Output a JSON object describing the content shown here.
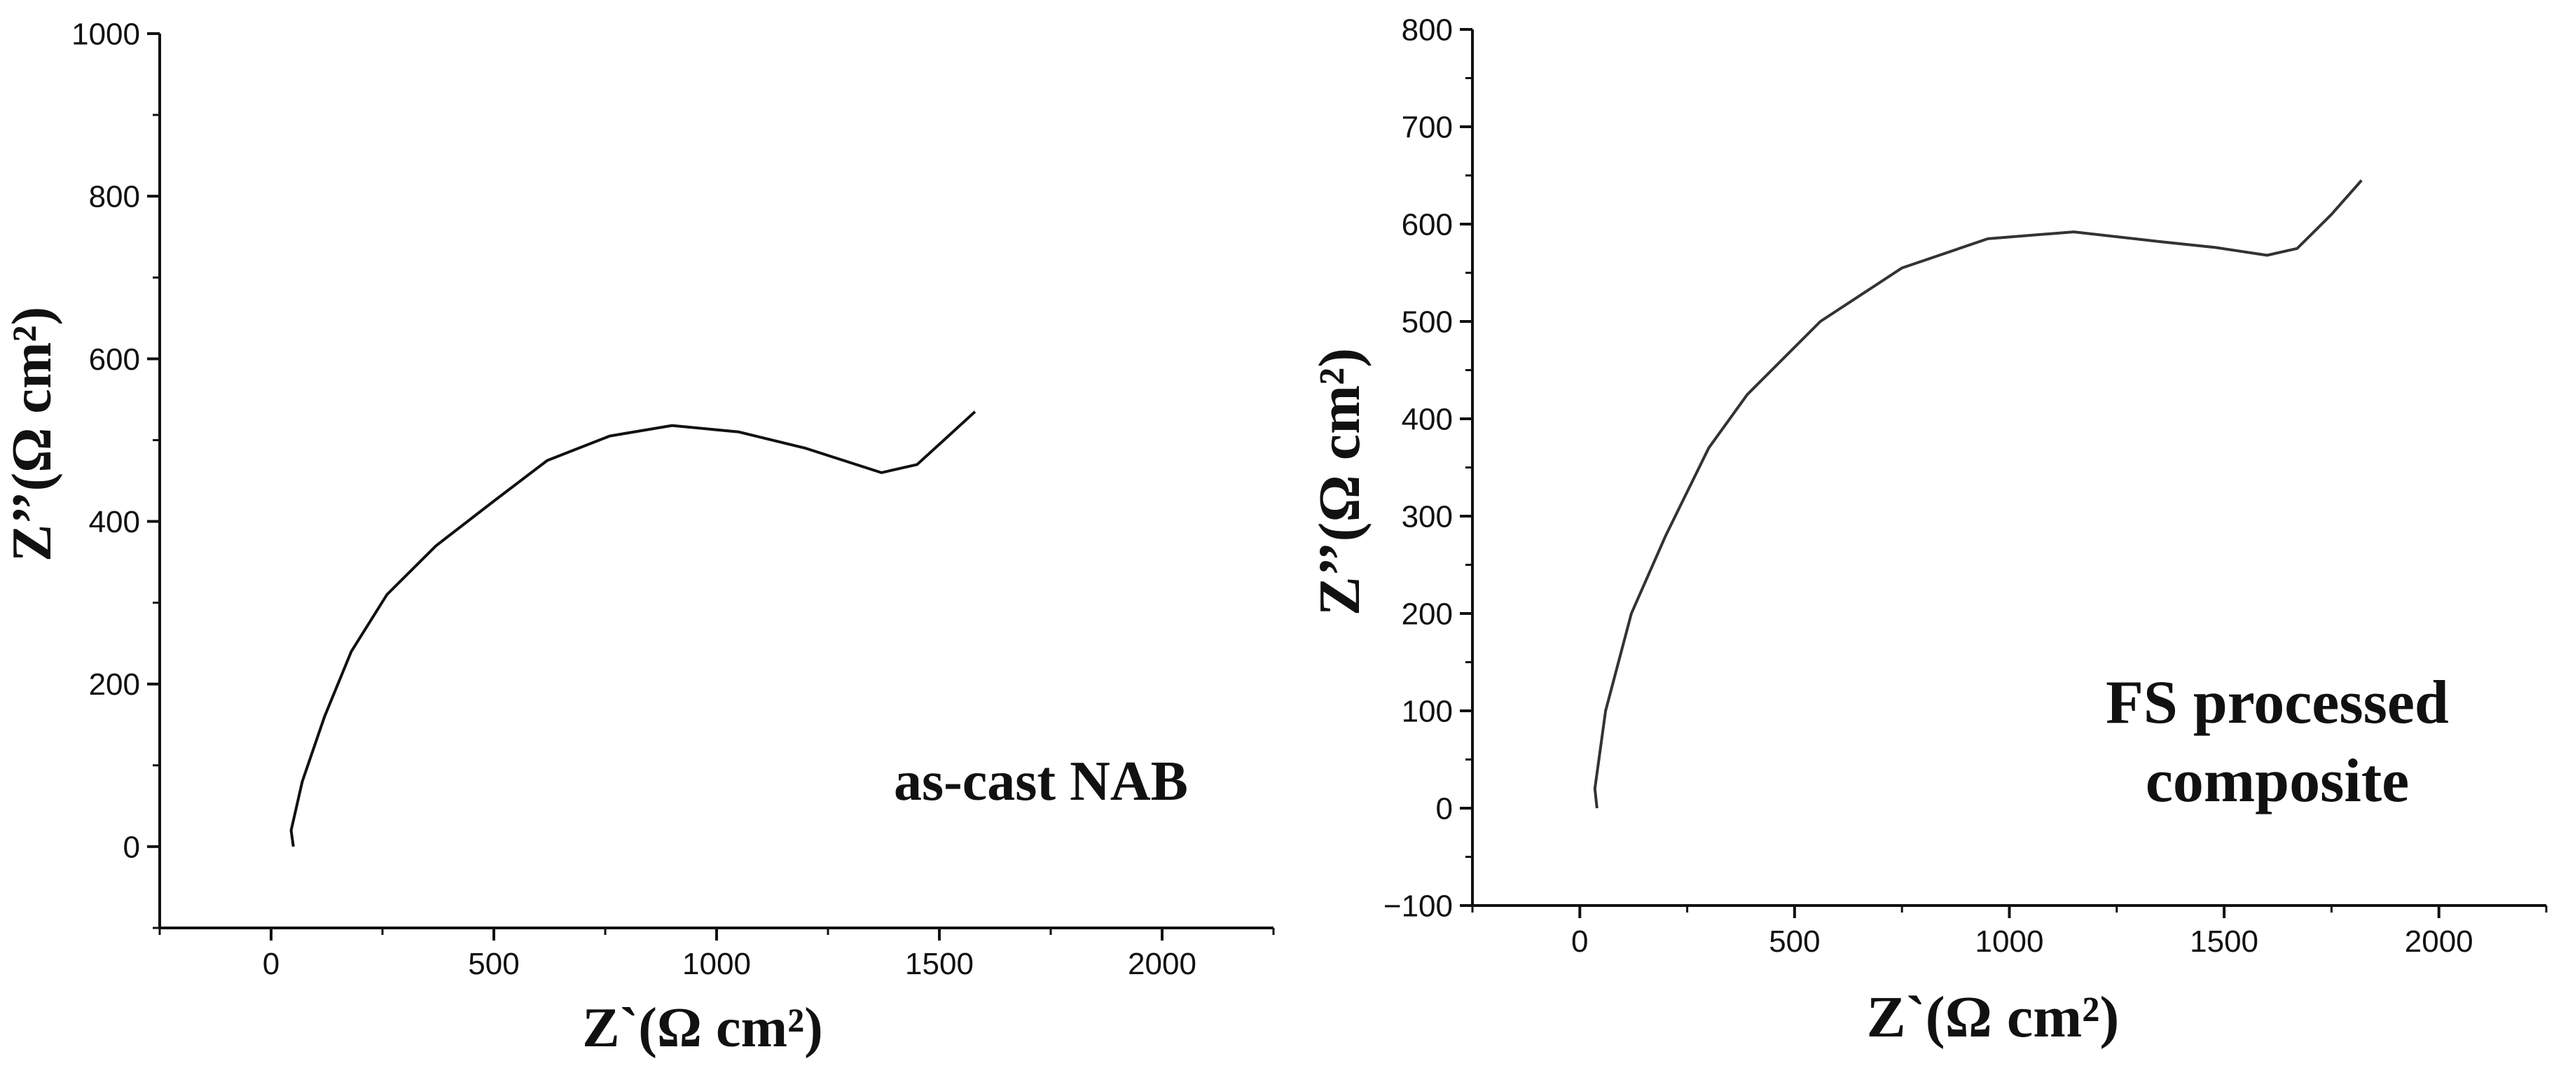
{
  "chart_data": [
    {
      "type": "line",
      "annotation": [
        "as-cast NAB"
      ],
      "xlabel": "Z`(Ω cm²)",
      "ylabel": "Z’’(Ω cm²)",
      "xlim": [
        -250,
        2250
      ],
      "ylim": [
        -100,
        1000
      ],
      "xticks": [
        0,
        500,
        1000,
        1500,
        2000
      ],
      "yticks": [
        0,
        200,
        400,
        600,
        800,
        1000
      ],
      "grid": false,
      "series": [
        {
          "x": [
            50,
            45,
            70,
            120,
            180,
            260,
            370,
            500,
            620,
            760,
            900,
            1050,
            1200,
            1370,
            1450,
            1510,
            1580
          ],
          "y": [
            0,
            20,
            80,
            160,
            240,
            310,
            370,
            425,
            475,
            505,
            518,
            510,
            490,
            460,
            470,
            500,
            535
          ]
        }
      ]
    },
    {
      "type": "line",
      "annotation": [
        "FS processed",
        "composite"
      ],
      "xlabel": "Z`(Ω cm²)",
      "ylabel": "Z’’(Ω cm²)",
      "xlim": [
        -250,
        2250
      ],
      "ylim": [
        -100,
        800
      ],
      "xticks": [
        0,
        500,
        1000,
        1500,
        2000
      ],
      "yticks": [
        -100,
        0,
        100,
        200,
        300,
        400,
        500,
        600,
        700,
        800
      ],
      "grid": false,
      "series": [
        {
          "x": [
            40,
            35,
            60,
            120,
            200,
            300,
            390,
            560,
            750,
            950,
            1150,
            1350,
            1480,
            1600,
            1670,
            1750,
            1820
          ],
          "y": [
            0,
            20,
            100,
            200,
            280,
            370,
            425,
            500,
            555,
            585,
            592,
            582,
            576,
            568,
            575,
            610,
            645
          ]
        }
      ]
    }
  ]
}
